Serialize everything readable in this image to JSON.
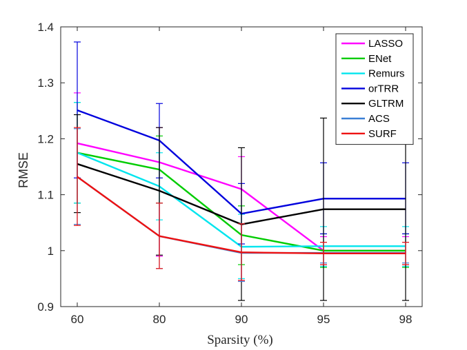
{
  "chart_data": {
    "type": "line",
    "title": "",
    "xlabel": "Sparsity (%)",
    "ylabel": "RMSE",
    "categories": [
      "60",
      "80",
      "90",
      "95",
      "98"
    ],
    "ylim": [
      0.9,
      1.4
    ],
    "yticks": [
      "0.9",
      "1",
      "1.1",
      "1.2",
      "1.3",
      "1.4"
    ],
    "grid": false,
    "legend_position": "top-right",
    "series": [
      {
        "name": "LASSO",
        "color": "#ff00ff",
        "values": [
          1.192,
          1.158,
          1.11,
          1.0,
          1.0
        ],
        "err_low": [
          1.085,
          0.99,
          0.945,
          0.975,
          0.975
        ],
        "err_high": [
          1.282,
          1.22,
          1.168,
          1.025,
          1.025
        ]
      },
      {
        "name": "ENet",
        "color": "#00cc00",
        "values": [
          1.175,
          1.145,
          1.028,
          1.0,
          1.0
        ],
        "err_low": [
          1.085,
          1.085,
          0.975,
          0.97,
          0.97
        ],
        "err_high": [
          1.265,
          1.205,
          1.08,
          1.03,
          1.03
        ]
      },
      {
        "name": "Remurs",
        "color": "#00e5ee",
        "values": [
          1.175,
          1.115,
          1.007,
          1.008,
          1.008
        ],
        "err_low": [
          1.085,
          1.055,
          0.95,
          0.972,
          0.972
        ],
        "err_high": [
          1.265,
          1.175,
          1.065,
          1.043,
          1.043
        ]
      },
      {
        "name": "orTRR",
        "color": "#0000dd",
        "values": [
          1.251,
          1.197,
          1.066,
          1.093,
          1.093
        ],
        "err_low": [
          1.13,
          1.13,
          1.012,
          1.03,
          1.03
        ],
        "err_high": [
          1.373,
          1.263,
          1.12,
          1.157,
          1.157
        ]
      },
      {
        "name": "GLTRM",
        "color": "#000000",
        "values": [
          1.155,
          1.107,
          1.047,
          1.074,
          1.074
        ],
        "err_low": [
          1.068,
          0.992,
          0.911,
          0.911,
          0.911
        ],
        "err_high": [
          1.243,
          1.22,
          1.184,
          1.237,
          1.237
        ]
      },
      {
        "name": "ACS",
        "color": "#3a7fd5",
        "values": [
          1.132,
          1.026,
          0.996,
          0.996,
          0.996
        ],
        "err_low": [
          1.047,
          0.968,
          0.945,
          0.978,
          0.978
        ],
        "err_high": [
          1.218,
          1.085,
          1.048,
          1.015,
          1.015
        ]
      },
      {
        "name": "SURF",
        "color": "#ee1111",
        "values": [
          1.132,
          1.026,
          0.997,
          0.995,
          0.995
        ],
        "err_low": [
          1.045,
          0.968,
          0.947,
          0.975,
          0.975
        ],
        "err_high": [
          1.22,
          1.085,
          1.048,
          1.015,
          1.015
        ]
      }
    ]
  }
}
